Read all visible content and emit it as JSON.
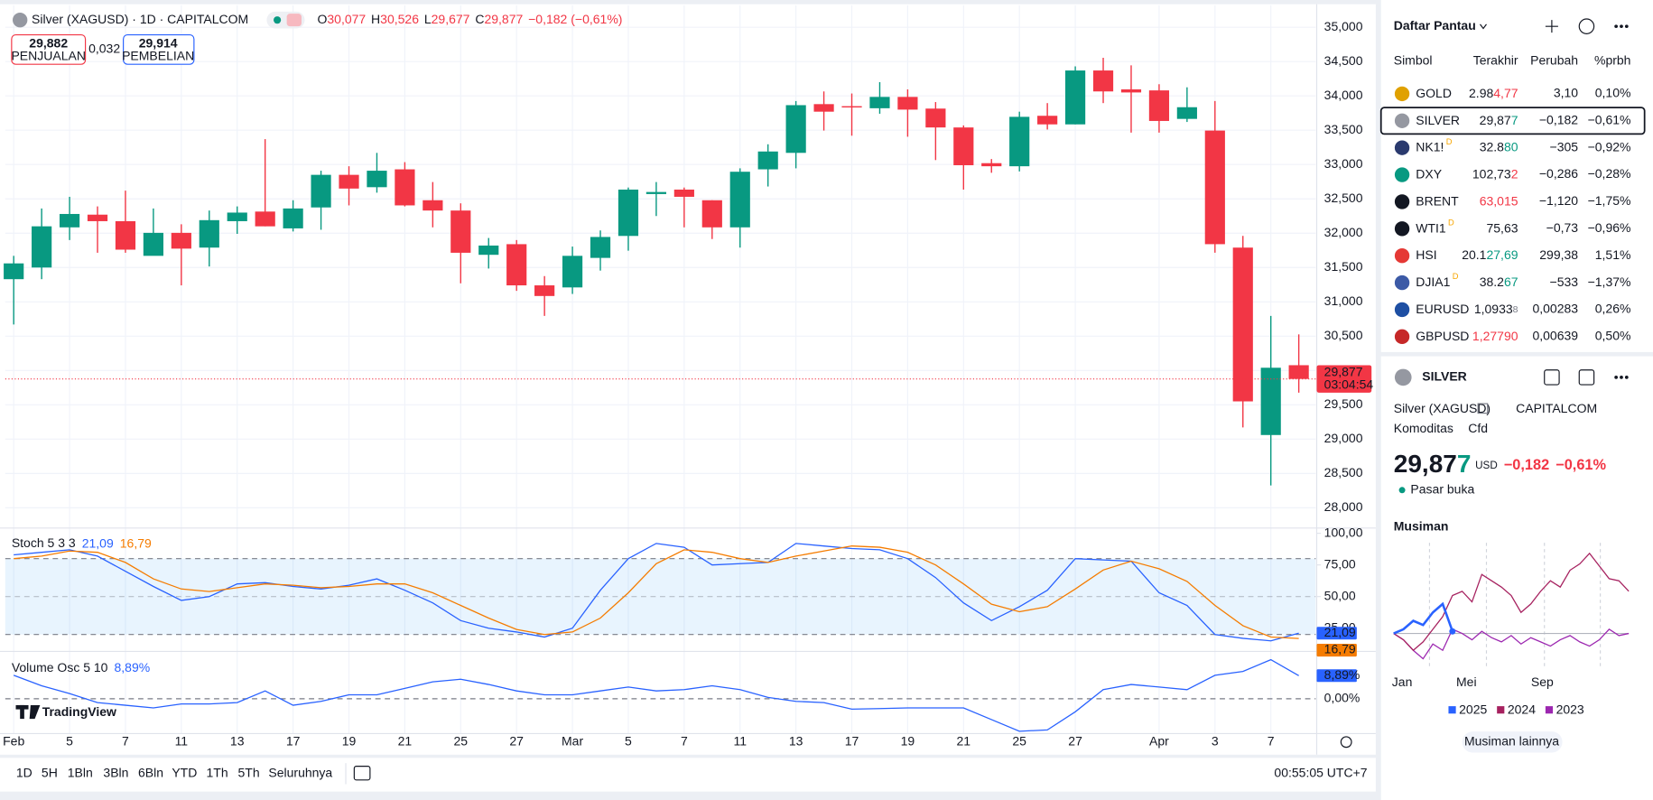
{
  "header": {
    "title": "Silver (XAGUSD) · 1D · CAPITALCOM",
    "ohlc": [
      {
        "key": "O",
        "value": "30,077"
      },
      {
        "key": "H",
        "value": "30,526"
      },
      {
        "key": "L",
        "value": "29,677"
      },
      {
        "key": "C",
        "value": "29,877"
      }
    ],
    "change": "−0,182 (−0,61%)",
    "sell": {
      "price": "29,882",
      "label": "PENJUALAN"
    },
    "spread": "0,032",
    "buy": {
      "price": "29,914",
      "label": "PEMBELIAN"
    }
  },
  "price_chart": {
    "type": "candlestick",
    "dates": [
      "Feb",
      null,
      "5",
      null,
      "7",
      null,
      "11",
      null,
      "13",
      null,
      "17",
      null,
      "19",
      null,
      "21",
      null,
      "25",
      null,
      "27",
      null,
      "Mar",
      null,
      "5",
      null,
      "7",
      null,
      "11",
      null,
      "13",
      null,
      "17",
      null,
      "19",
      null,
      "21",
      null,
      "25",
      null,
      "27",
      null,
      null,
      "Apr",
      null,
      "3",
      null,
      "7",
      null
    ],
    "open": [
      31330,
      31500,
      32085,
      32270,
      32175,
      31670,
      32005,
      31790,
      32175,
      32315,
      32070,
      32375,
      32850,
      32670,
      32930,
      32480,
      32330,
      31685,
      31840,
      31240,
      31210,
      31640,
      31960,
      32570,
      32635,
      32480,
      32085,
      32930,
      33170,
      33880,
      33850,
      33820,
      33985,
      33815,
      33540,
      33020,
      32975,
      33710,
      33585,
      34370,
      34095,
      34080,
      33665,
      33495,
      31790,
      29060,
      30077
    ],
    "high": [
      31670,
      32360,
      32530,
      32390,
      32620,
      32360,
      32130,
      32330,
      32390,
      33370,
      32480,
      32910,
      32975,
      33170,
      33035,
      32745,
      32435,
      31930,
      31900,
      31375,
      31805,
      32040,
      32665,
      32745,
      32665,
      32480,
      32945,
      33295,
      33925,
      34065,
      34035,
      34200,
      34095,
      33910,
      33570,
      33080,
      33770,
      33895,
      34430,
      34555,
      34445,
      34170,
      34125,
      33925,
      31960,
      30795,
      30526
    ],
    "low": [
      30670,
      31330,
      31900,
      31715,
      31715,
      31745,
      31240,
      31515,
      31990,
      32100,
      32025,
      32050,
      32405,
      32590,
      32390,
      32085,
      31270,
      31485,
      31160,
      30795,
      31115,
      31455,
      31745,
      32250,
      32085,
      31915,
      31790,
      32680,
      32945,
      33495,
      33420,
      33740,
      33405,
      33065,
      32635,
      32880,
      32900,
      33510,
      33585,
      33895,
      33465,
      33465,
      33620,
      31715,
      29170,
      28325,
      29677
    ],
    "close": [
      31560,
      32100,
      32280,
      32175,
      31760,
      32005,
      31775,
      32190,
      32300,
      32100,
      32360,
      32850,
      32650,
      32910,
      32405,
      32330,
      31715,
      31820,
      31240,
      31085,
      31670,
      31945,
      32635,
      32600,
      32530,
      32085,
      32895,
      33190,
      33865,
      33770,
      33835,
      33985,
      33800,
      33540,
      32990,
      32975,
      33695,
      33585,
      34370,
      34065,
      34050,
      33635,
      33835,
      31840,
      29550,
      30040,
      29877
    ],
    "up_color": "#089981",
    "down_color": "#f23645",
    "ylim": [
      27720,
      35320
    ],
    "yticks": [
      {
        "value": 28000,
        "label": "28,000"
      },
      {
        "value": 28500,
        "label": "28,500"
      },
      {
        "value": 29000,
        "label": "29,000"
      },
      {
        "value": 29500,
        "label": "29,500"
      },
      {
        "value": 30000,
        "label": "30,000"
      },
      {
        "value": 30500,
        "label": "30,500"
      },
      {
        "value": 31000,
        "label": "31,000"
      },
      {
        "value": 31500,
        "label": "31,500"
      },
      {
        "value": 32000,
        "label": "32,000"
      },
      {
        "value": 32500,
        "label": "32,500"
      },
      {
        "value": 33000,
        "label": "33,000"
      },
      {
        "value": 33500,
        "label": "33,500"
      },
      {
        "value": 34000,
        "label": "34,000"
      },
      {
        "value": 34500,
        "label": "34,500"
      },
      {
        "value": 35000,
        "label": "35,000"
      }
    ],
    "grid": true,
    "last_label": "29,877",
    "countdown": "03:04:54"
  },
  "stochastic": {
    "type": "line",
    "title": "Stoch 5 3 3",
    "series": [
      {
        "color": "#2962ff",
        "last_value_label": "21,09",
        "values": [
          83,
          85,
          87,
          82,
          70,
          58,
          47,
          50,
          60,
          61,
          58,
          56,
          59,
          64,
          55,
          45,
          31,
          25,
          22,
          18,
          25,
          55,
          80,
          92,
          89,
          75,
          76,
          77,
          92,
          90,
          88,
          87,
          80,
          65,
          45,
          31,
          42,
          55,
          80,
          79,
          78,
          53,
          43,
          20,
          17,
          15,
          21.09
        ]
      },
      {
        "color": "#f57c00",
        "last_value_label": "16,79",
        "values": [
          80,
          82,
          86,
          85,
          77,
          64,
          56,
          54,
          57,
          60,
          59,
          57,
          58,
          60,
          60,
          53,
          43,
          33,
          24,
          20,
          22,
          33,
          53,
          76,
          87,
          85,
          80,
          77,
          82,
          86,
          90,
          89,
          85,
          75,
          60,
          44,
          38,
          42,
          56,
          71,
          78,
          72,
          62,
          43,
          27,
          18,
          16.79
        ]
      }
    ],
    "ylim": [
      7.5,
      103.3
    ],
    "yticks": [
      {
        "value": 25,
        "label": "25,00"
      },
      {
        "value": 50,
        "label": "50,00"
      },
      {
        "value": 75,
        "label": "75,00"
      },
      {
        "value": 100,
        "label": "100,00"
      }
    ],
    "bands": [
      20,
      80
    ],
    "midline": 50
  },
  "volume_osc": {
    "type": "line",
    "title": "Volume Osc 5 10",
    "series": [
      {
        "color": "#2962ff",
        "last_value_label": "8,89%",
        "values": [
          9,
          5,
          2,
          -1.5,
          -2.5,
          -3.5,
          -2,
          -2,
          -1.5,
          3,
          -2.5,
          -1,
          1.5,
          1.5,
          4,
          6.5,
          7.5,
          5.5,
          3,
          1.5,
          1.5,
          3,
          4.5,
          3,
          3.5,
          5,
          3.5,
          0.5,
          -1,
          -1.5,
          -4,
          -3.8,
          -3.5,
          -3.5,
          -3.5,
          -8,
          -12.5,
          -12,
          -5,
          3.5,
          5.5,
          4.5,
          3.5,
          9,
          10.5,
          15,
          8.89
        ]
      }
    ],
    "ylim": [
      -13.4,
      17.4
    ],
    "yticks": [
      {
        "value": 0,
        "label": "0,00%"
      }
    ]
  },
  "logo": "TradingView",
  "toolbar": {
    "ranges": [
      "1D",
      "5H",
      "1Bln",
      "3Bln",
      "6Bln",
      "YTD",
      "1Th",
      "5Th",
      "Seluruhnya"
    ],
    "time": "00:55:05 UTC+7"
  },
  "watchlist": {
    "title": "Daftar Pantau",
    "columns": [
      "Simbol",
      "Terakhir",
      "Perubah",
      "%prbh"
    ],
    "selected_row": 1,
    "rows": [
      {
        "symbol": "GOLD",
        "icon": "#e0a100",
        "last": [
          "2.98",
          "4,77"
        ],
        "tick": "down",
        "change": "3,10",
        "pct": "0,10%",
        "dir": "up"
      },
      {
        "symbol": "SILVER",
        "icon": "#9598a1",
        "last": [
          "29,87",
          "7"
        ],
        "tick": "up",
        "change": "−0,182",
        "pct": "−0,61%",
        "dir": "down"
      },
      {
        "symbol": "NK1!",
        "icon": "#2a3a6e",
        "flag": "D",
        "last": [
          "32.8",
          "80"
        ],
        "tick": "up",
        "change": "−305",
        "pct": "−0,92%",
        "dir": "down"
      },
      {
        "symbol": "DXY",
        "icon": "#089981",
        "last": [
          "102,73",
          "2"
        ],
        "tick": "down",
        "change": "−0,286",
        "pct": "−0,28%",
        "dir": "down"
      },
      {
        "symbol": "BRENT",
        "icon": "#131722",
        "last": [
          "63,015"
        ],
        "tick": "down",
        "change": "−1,120",
        "pct": "−1,75%",
        "dir": "down"
      },
      {
        "symbol": "WTI1",
        "icon": "#131722",
        "flag": "D",
        "last": [
          "75,63"
        ],
        "tick": "none",
        "change": "−0,73",
        "pct": "−0,96%",
        "dir": "down"
      },
      {
        "symbol": "HSI",
        "icon": "#e53935",
        "last": [
          "20.1",
          "27,69"
        ],
        "tick": "up",
        "change": "299,38",
        "pct": "1,51%",
        "dir": "up"
      },
      {
        "symbol": "DJIA1",
        "icon": "#3c5aa6",
        "flag": "D",
        "last": [
          "38.2",
          "67"
        ],
        "tick": "up",
        "change": "−533",
        "pct": "−1,37%",
        "dir": "down"
      },
      {
        "symbol": "EURUSD",
        "icon": "#1e4fa3",
        "last": [
          "1,0933",
          "8"
        ],
        "tick": "none",
        "change": "0,00283",
        "pct": "0,26%",
        "dir": "up"
      },
      {
        "symbol": "GBPUSD",
        "icon": "#c62828",
        "last": [
          "1,27790"
        ],
        "tick": "down",
        "change": "0,00639",
        "pct": "0,50%",
        "dir": "up"
      }
    ]
  },
  "detail": {
    "symbol": "SILVER",
    "name": "Silver (XAGUSD)",
    "exchange": "CAPITALCOM",
    "category": "Komoditas",
    "kind": "Cfd",
    "price": [
      "29,87",
      "7"
    ],
    "currency": "USD",
    "change": "−0,182",
    "pct": "−0,61%",
    "status": "Pasar buka"
  },
  "seasonal": {
    "type": "line",
    "title": "Musiman",
    "months": [
      "Jan",
      "Mei",
      "Sep"
    ],
    "series": [
      {
        "name": "2025",
        "color": "#2962ff",
        "values": [
          0,
          2,
          6,
          4,
          10,
          14,
          1
        ]
      },
      {
        "name": "2024",
        "color": "#a6215f",
        "values": [
          0,
          -3,
          -8,
          -4,
          2,
          8,
          18,
          20,
          15,
          28,
          25,
          22,
          18,
          10,
          14,
          20,
          25,
          22,
          30,
          33,
          38,
          32,
          26,
          25,
          20
        ]
      },
      {
        "name": "2023",
        "color": "#9c27b0",
        "values": [
          0,
          -3,
          -8,
          -12,
          -5,
          -8,
          2,
          0,
          -3,
          1,
          -2,
          -4,
          -1,
          -5,
          -2,
          -4,
          -6,
          -3,
          -1,
          -4,
          -6,
          -3,
          2,
          -1,
          0
        ]
      }
    ],
    "ylim": [
      -17,
      43
    ],
    "button": "Musiman lainnya"
  }
}
